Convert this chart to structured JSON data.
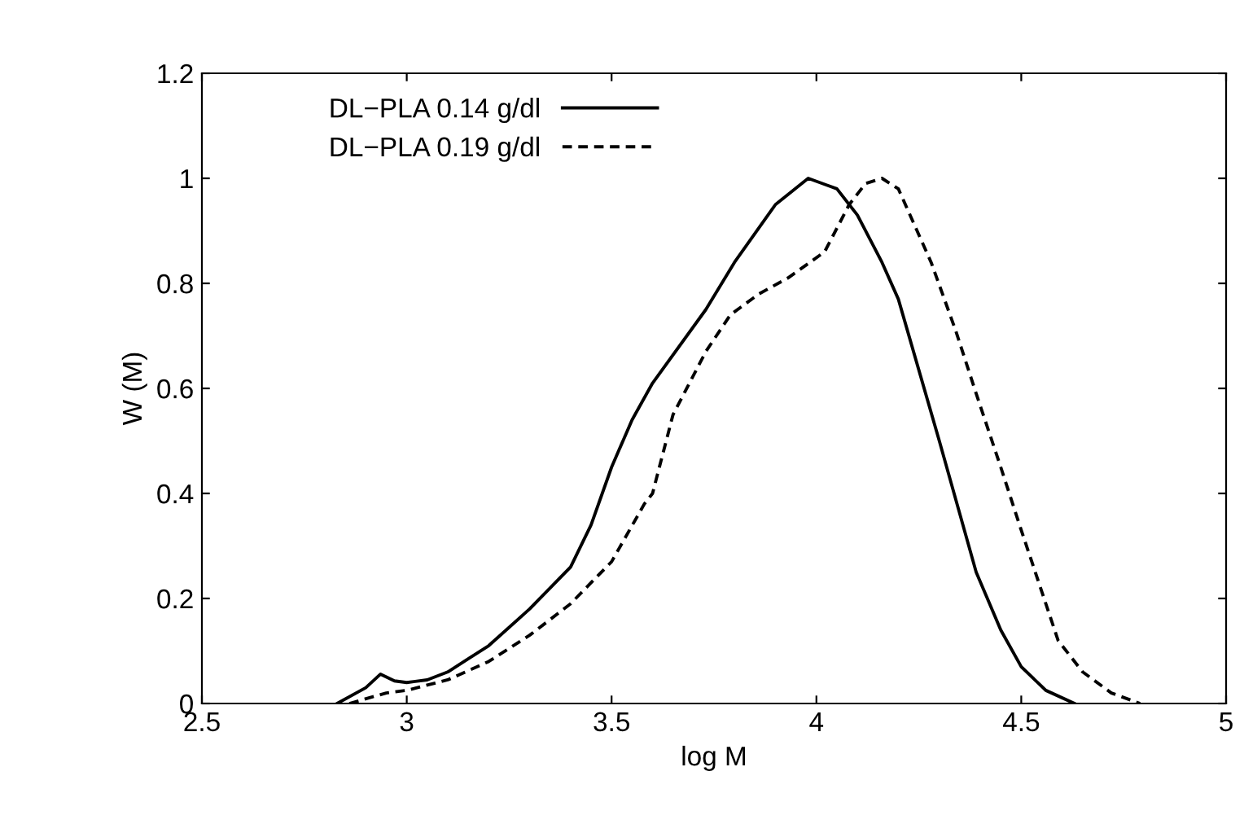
{
  "chart_data": {
    "type": "line",
    "xlabel": "log M",
    "ylabel": "W (M)",
    "xlim": [
      2.5,
      5
    ],
    "ylim": [
      0,
      1.2
    ],
    "xticks": [
      2.5,
      3,
      3.5,
      4,
      4.5,
      5
    ],
    "yticks": [
      0,
      0.2,
      0.4,
      0.6,
      0.8,
      1,
      1.2
    ],
    "grid": false,
    "legend": "top left",
    "series": [
      {
        "name": "DL−PLA 0.14 g/dl",
        "color": "#000000",
        "line_style": "solid",
        "x": [
          2.83,
          2.9,
          2.936,
          2.97,
          3.0,
          3.05,
          3.1,
          3.15,
          3.2,
          3.3,
          3.4,
          3.45,
          3.5,
          3.55,
          3.6,
          3.73,
          3.8,
          3.9,
          3.98,
          4.05,
          4.1,
          4.16,
          4.2,
          4.3,
          4.39,
          4.45,
          4.5,
          4.56,
          4.63
        ],
        "values": [
          0,
          0.03,
          0.056,
          0.043,
          0.04,
          0.045,
          0.06,
          0.085,
          0.11,
          0.18,
          0.26,
          0.34,
          0.45,
          0.54,
          0.61,
          0.75,
          0.84,
          0.95,
          1.0,
          0.98,
          0.93,
          0.84,
          0.77,
          0.5,
          0.25,
          0.14,
          0.07,
          0.025,
          0
        ]
      },
      {
        "name": "DL−PLA 0.19 g/dl",
        "color": "#000000",
        "line_style": "dashed",
        "x": [
          2.86,
          2.95,
          3.0,
          3.1,
          3.2,
          3.3,
          3.4,
          3.5,
          3.58,
          3.6,
          3.65,
          3.73,
          3.79,
          3.86,
          3.93,
          4.02,
          4.08,
          4.12,
          4.16,
          4.2,
          4.28,
          4.34,
          4.39,
          4.45,
          4.5,
          4.59,
          4.65,
          4.72,
          4.79
        ],
        "values": [
          0,
          0.02,
          0.025,
          0.045,
          0.08,
          0.13,
          0.19,
          0.27,
          0.38,
          0.4,
          0.55,
          0.67,
          0.74,
          0.78,
          0.81,
          0.86,
          0.95,
          0.99,
          1.0,
          0.98,
          0.84,
          0.71,
          0.59,
          0.45,
          0.33,
          0.12,
          0.06,
          0.02,
          0
        ]
      }
    ]
  }
}
